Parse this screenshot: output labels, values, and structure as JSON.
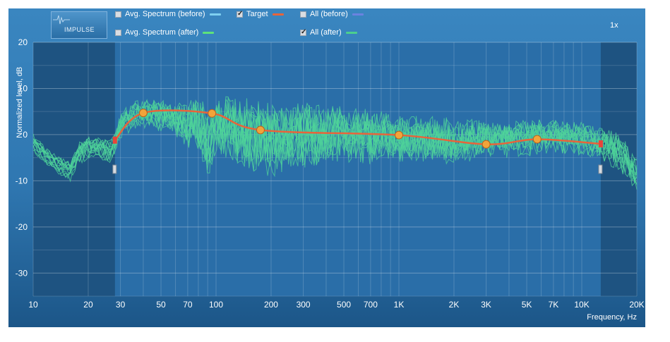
{
  "toolbar": {
    "impulse_label": "IMPULSE",
    "zoom_label": "1x"
  },
  "legend": [
    {
      "id": "avg-before",
      "label": "Avg. Spectrum (before)",
      "checked": false,
      "color": "#7fd0f0"
    },
    {
      "id": "avg-after",
      "label": "Avg. Spectrum (after)",
      "checked": false,
      "color": "#5ee27a"
    },
    {
      "id": "target",
      "label": "Target",
      "checked": true,
      "color": "#e8643a"
    },
    {
      "id": "all-before",
      "label": "All (before)",
      "checked": false,
      "color": "#6b82e0"
    },
    {
      "id": "all-after",
      "label": "All (after)",
      "checked": true,
      "color": "#4ccf8e"
    }
  ],
  "chart_data": {
    "type": "line",
    "xscale": "log",
    "xlim": [
      10,
      20000
    ],
    "ylim": [
      -35,
      20
    ],
    "xlabel": "Frequency, Hz",
    "ylabel": "Normalized level, dB",
    "x_ticks": [
      {
        "v": 10,
        "label": "10"
      },
      {
        "v": 20,
        "label": "20"
      },
      {
        "v": 30,
        "label": "30"
      },
      {
        "v": 50,
        "label": "50"
      },
      {
        "v": 70,
        "label": "70"
      },
      {
        "v": 100,
        "label": "100"
      },
      {
        "v": 200,
        "label": "200"
      },
      {
        "v": 300,
        "label": "300"
      },
      {
        "v": 500,
        "label": "500"
      },
      {
        "v": 700,
        "label": "700"
      },
      {
        "v": 1000,
        "label": "1K"
      },
      {
        "v": 2000,
        "label": "2K"
      },
      {
        "v": 3000,
        "label": "3K"
      },
      {
        "v": 5000,
        "label": "5K"
      },
      {
        "v": 7000,
        "label": "7K"
      },
      {
        "v": 10000,
        "label": "10K"
      },
      {
        "v": 20000,
        "label": "20K"
      }
    ],
    "y_ticks": [
      {
        "v": 20,
        "label": "20"
      },
      {
        "v": 10,
        "label": "10"
      },
      {
        "v": 0,
        "label": "0"
      },
      {
        "v": -10,
        "label": "-10"
      },
      {
        "v": -20,
        "label": "-20"
      },
      {
        "v": -30,
        "label": "-30"
      }
    ],
    "excluded_ranges": [
      [
        10,
        28
      ],
      [
        12700,
        20000
      ]
    ],
    "grid": true,
    "target": {
      "name": "Target",
      "x": [
        28,
        40,
        95,
        175,
        1000,
        3000,
        5700,
        12700
      ],
      "y": [
        -1.2,
        4.7,
        4.6,
        1.0,
        -0.1,
        -2.1,
        -1.0,
        -2.0
      ]
    },
    "all_after": {
      "name": "All (after)",
      "curve_count": 14,
      "x": [
        10,
        12,
        14,
        16,
        18,
        20,
        23,
        26,
        28,
        30,
        35,
        40,
        50,
        60,
        70,
        80,
        90,
        100,
        120,
        150,
        200,
        300,
        500,
        700,
        1000,
        1500,
        2000,
        3000,
        4000,
        5000,
        7000,
        10000,
        12700,
        15000,
        18000,
        20000
      ],
      "y": [
        -2,
        -5,
        -7,
        -8,
        -4,
        -3,
        -3,
        -4,
        -2,
        2,
        4,
        4.5,
        4,
        3,
        2,
        3,
        -3,
        2,
        1,
        0,
        -1,
        0,
        0,
        -0.5,
        -1,
        -1,
        -1.5,
        -1,
        -1,
        -0.5,
        -0.5,
        -1,
        -2,
        -3,
        -6,
        -9
      ],
      "spread": [
        1,
        1,
        1,
        1,
        1.5,
        1.5,
        1.5,
        1.5,
        2,
        2,
        2,
        2,
        2.5,
        3,
        4,
        6,
        6,
        6,
        6,
        7,
        7,
        6,
        5,
        5,
        4,
        4,
        4,
        3,
        3,
        3,
        2.5,
        2.5,
        2.5,
        3,
        3,
        3
      ]
    }
  }
}
